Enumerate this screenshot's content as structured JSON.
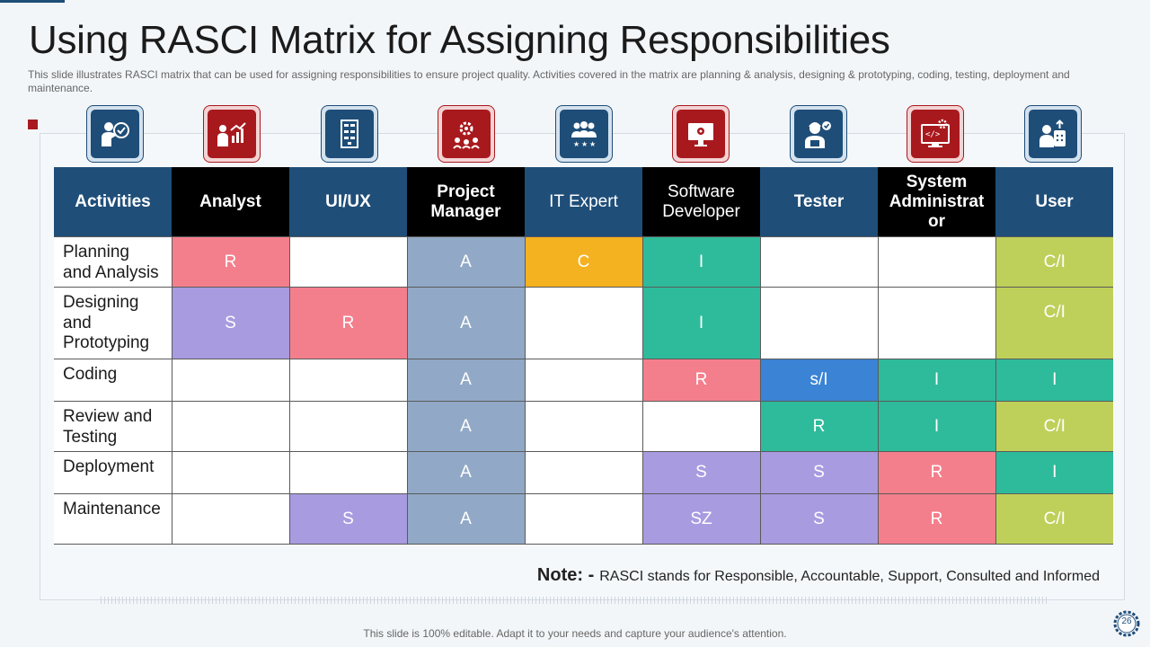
{
  "slide": {
    "title": "Using RASCI Matrix for Assigning Responsibilities",
    "subtitle": "This slide illustrates RASCI matrix that can be used for assigning responsibilities to ensure project quality. Activities covered  in the matrix are planning & analysis, designing & prototyping, coding, testing, deployment and maintenance.",
    "footer": "This slide is 100% editable. Adapt it to your needs and capture your audience's attention.",
    "page_number": "26"
  },
  "icons": [
    {
      "name": "presenter-check-icon",
      "style": "blue"
    },
    {
      "name": "chart-presentation-icon",
      "style": "red"
    },
    {
      "name": "server-rack-icon",
      "style": "blue"
    },
    {
      "name": "team-gears-icon",
      "style": "red"
    },
    {
      "name": "team-stars-icon",
      "style": "blue"
    },
    {
      "name": "monitor-settings-icon",
      "style": "red"
    },
    {
      "name": "tester-check-icon",
      "style": "blue"
    },
    {
      "name": "web-admin-icon",
      "style": "red"
    },
    {
      "name": "user-device-icon",
      "style": "blue"
    }
  ],
  "colors": {
    "navy": "#1f4e79",
    "red": "#a8191e",
    "pink": "#f47f8c",
    "purple": "#a89be0",
    "steel": "#91a9c6",
    "orange": "#f4b120",
    "teal": "#2ebb9b",
    "lime": "#bfd05a",
    "blue": "#3b83d4"
  },
  "matrix": {
    "headers": [
      "Activities",
      "Analyst",
      "UI/UX",
      "Project Manager",
      "IT Expert",
      "Software Developer",
      "Tester",
      "System Administrat or",
      "User"
    ],
    "rows": [
      {
        "activity": "Planning and Analysis",
        "cells": [
          {
            "v": "R",
            "c": "pink"
          },
          {
            "v": "",
            "c": ""
          },
          {
            "v": "A",
            "c": "steel"
          },
          {
            "v": "C",
            "c": "orange"
          },
          {
            "v": "I",
            "c": "teal"
          },
          {
            "v": "",
            "c": ""
          },
          {
            "v": "",
            "c": ""
          },
          {
            "v": "C/I",
            "c": "lime"
          }
        ]
      },
      {
        "activity": "Designing and Prototyping",
        "cells": [
          {
            "v": "S",
            "c": "purple"
          },
          {
            "v": "R",
            "c": "pink"
          },
          {
            "v": "A",
            "c": "steel"
          },
          {
            "v": "",
            "c": ""
          },
          {
            "v": "I",
            "c": "teal"
          },
          {
            "v": "",
            "c": ""
          },
          {
            "v": "",
            "c": ""
          },
          {
            "v": "C/I",
            "c": "lime"
          }
        ]
      },
      {
        "activity": "Coding",
        "cells": [
          {
            "v": "",
            "c": ""
          },
          {
            "v": "",
            "c": ""
          },
          {
            "v": "A",
            "c": "steel"
          },
          {
            "v": "",
            "c": ""
          },
          {
            "v": "R",
            "c": "pink"
          },
          {
            "v": "s/I",
            "c": "blue"
          },
          {
            "v": "I",
            "c": "teal"
          },
          {
            "v": "I",
            "c": "teal"
          }
        ]
      },
      {
        "activity": "Review and Testing",
        "cells": [
          {
            "v": "",
            "c": ""
          },
          {
            "v": "",
            "c": ""
          },
          {
            "v": "A",
            "c": "steel"
          },
          {
            "v": "",
            "c": ""
          },
          {
            "v": "",
            "c": ""
          },
          {
            "v": "R",
            "c": "teal"
          },
          {
            "v": "I",
            "c": "teal"
          },
          {
            "v": "C/I",
            "c": "lime"
          }
        ]
      },
      {
        "activity": "Deployment",
        "cells": [
          {
            "v": "",
            "c": ""
          },
          {
            "v": "",
            "c": ""
          },
          {
            "v": "A",
            "c": "steel"
          },
          {
            "v": "",
            "c": ""
          },
          {
            "v": "S",
            "c": "purple"
          },
          {
            "v": "S",
            "c": "purple"
          },
          {
            "v": "R",
            "c": "pink"
          },
          {
            "v": "I",
            "c": "teal"
          }
        ]
      },
      {
        "activity": "Maintenance",
        "cells": [
          {
            "v": "",
            "c": ""
          },
          {
            "v": "S",
            "c": "purple"
          },
          {
            "v": "A",
            "c": "steel"
          },
          {
            "v": "",
            "c": ""
          },
          {
            "v": "SZ",
            "c": "purple"
          },
          {
            "v": "S",
            "c": "purple"
          },
          {
            "v": "R",
            "c": "pink"
          },
          {
            "v": "C/I",
            "c": "lime"
          }
        ]
      }
    ]
  },
  "note": {
    "label": "Note: -",
    "text": "RASCI stands for Responsible, Accountable, Support, Consulted and Informed"
  }
}
